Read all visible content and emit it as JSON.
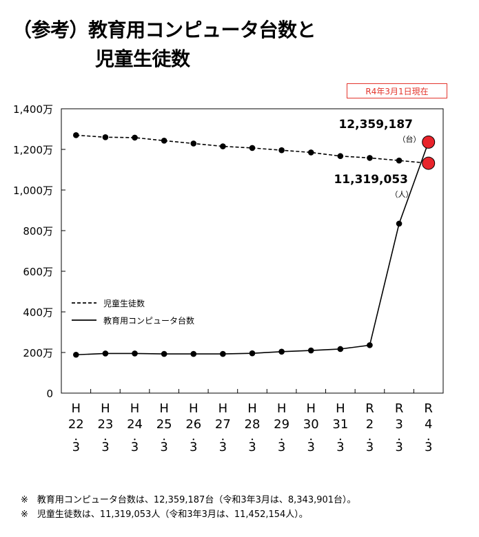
{
  "title": {
    "line1": "（参考）教育用コンピュータ台数と",
    "line2": "児童生徒数"
  },
  "as_of": "R4年3月1日現在",
  "colors": {
    "line": "#000000",
    "marker": "#000000",
    "highlight": "#e8242b",
    "badge": "#e3342b"
  },
  "chart_data": {
    "type": "line",
    "categories": [
      [
        "H",
        "22",
        "・",
        "3"
      ],
      [
        "H",
        "23",
        "・",
        "3"
      ],
      [
        "H",
        "24",
        "・",
        "3"
      ],
      [
        "H",
        "25",
        "・",
        "3"
      ],
      [
        "H",
        "26",
        "・",
        "3"
      ],
      [
        "H",
        "27",
        "・",
        "3"
      ],
      [
        "H",
        "28",
        "・",
        "3"
      ],
      [
        "H",
        "29",
        "・",
        "3"
      ],
      [
        "H",
        "30",
        "・",
        "3"
      ],
      [
        "H",
        "31",
        "・",
        "3"
      ],
      [
        "R",
        "2",
        "・",
        "3"
      ],
      [
        "R",
        "3",
        "・",
        "3"
      ],
      [
        "R",
        "4",
        "・",
        "3"
      ]
    ],
    "y_ticks": [
      "0",
      "200万",
      "400万",
      "600万",
      "800万",
      "1,000万",
      "1,200万",
      "1,400万"
    ],
    "ylim": [
      0,
      14000000
    ],
    "grid": false,
    "legend_position": "left-middle",
    "series": [
      {
        "name": "児童生徒数",
        "style": "dashed",
        "values": [
          12700000,
          12600000,
          12580000,
          12430000,
          12290000,
          12150000,
          12070000,
          11960000,
          11850000,
          11670000,
          11580000,
          11452154,
          11319053
        ]
      },
      {
        "name": "教育用コンピュータ台数",
        "style": "solid",
        "values": [
          1890000,
          1950000,
          1950000,
          1930000,
          1930000,
          1930000,
          1960000,
          2040000,
          2100000,
          2170000,
          2360000,
          8343901,
          12359187
        ]
      }
    ],
    "annotations": [
      {
        "text": "12,359,187",
        "unit": "（台）",
        "series": "教育用コンピュータ台数"
      },
      {
        "text": "11,319,053",
        "unit": "（人）",
        "series": "児童生徒数"
      }
    ]
  },
  "notes": [
    "※　教育用コンピュータ台数は、12,359,187台（令和3年3月は、8,343,901台）。",
    "※　児童生徒数は、11,319,053人（令和3年3月は、11,452,154人）。"
  ]
}
